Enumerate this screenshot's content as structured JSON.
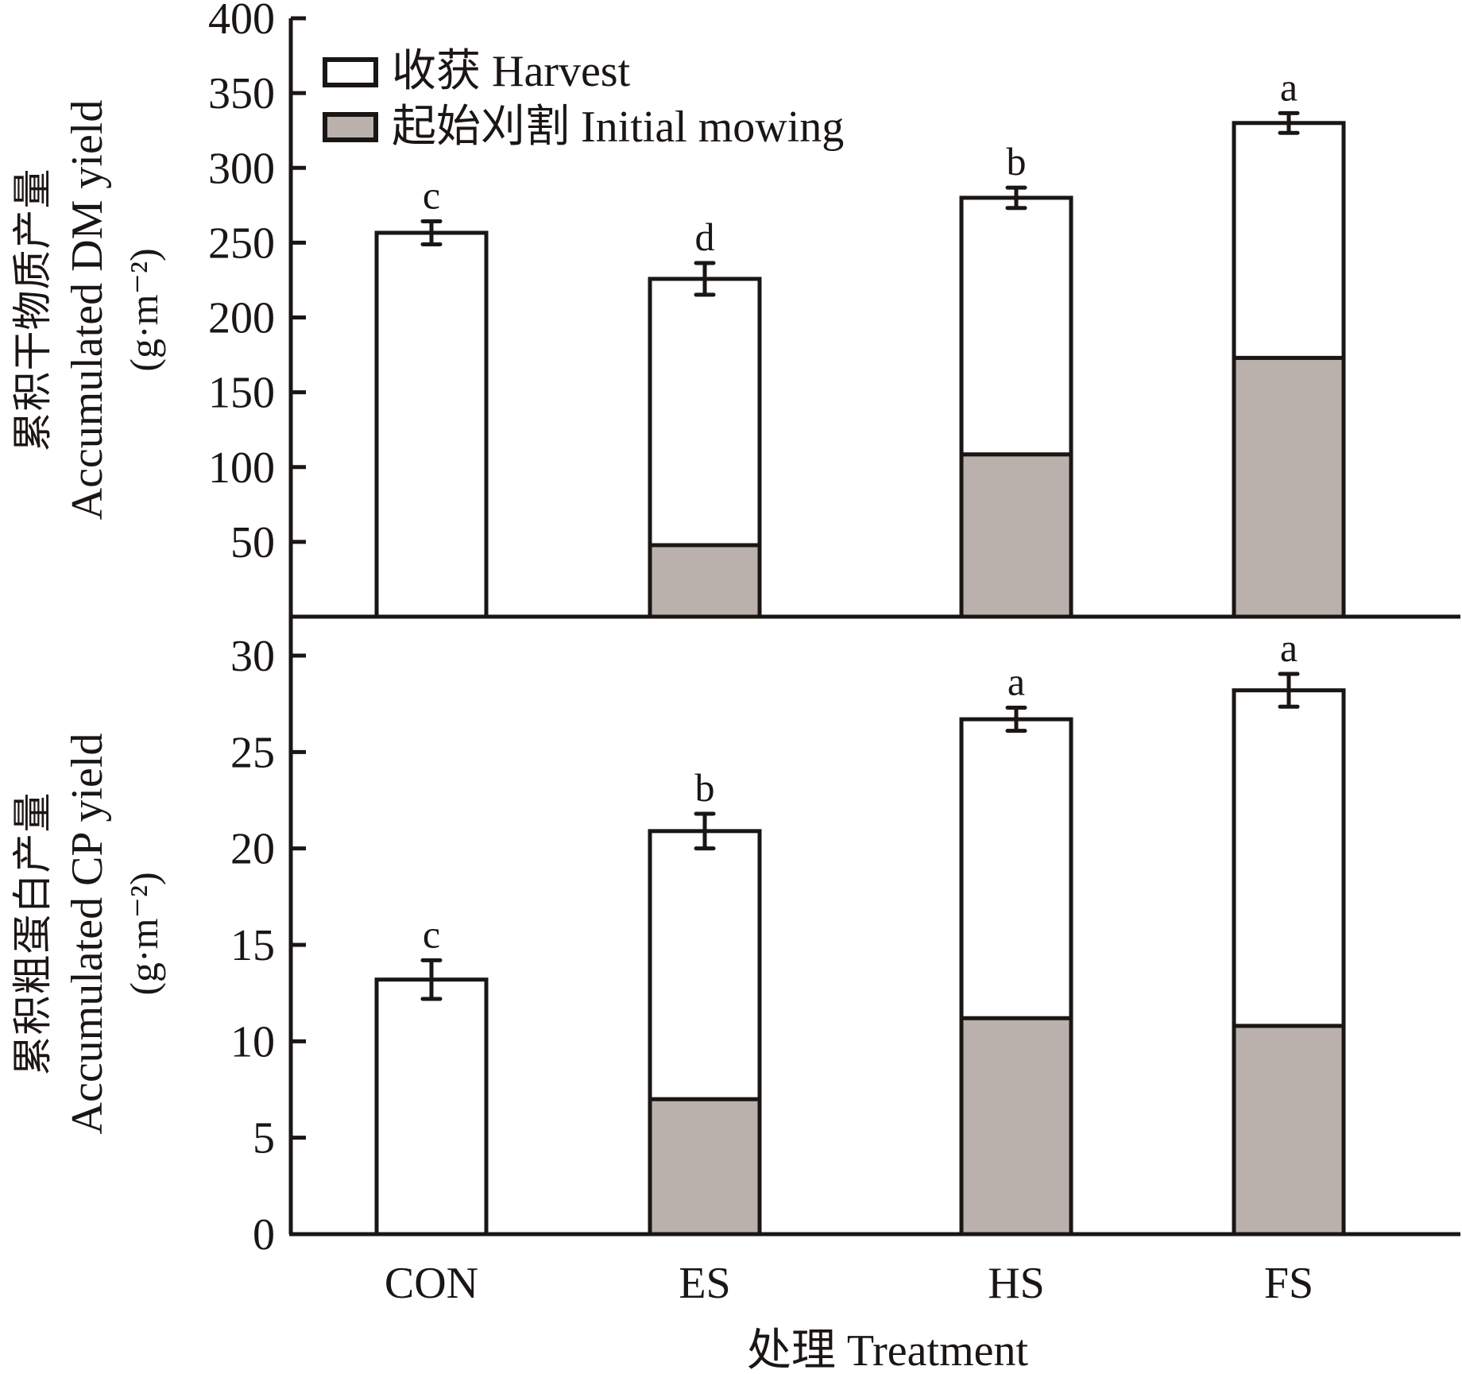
{
  "chart_data": [
    {
      "type": "bar",
      "stacked": true,
      "panel": "top",
      "ylabel_lines": [
        "累积干物质产量",
        "Accumulated DM yield",
        "(g·m⁻²)"
      ],
      "ylim": [
        0,
        400
      ],
      "yticks": [
        50,
        100,
        150,
        200,
        250,
        300,
        350,
        400
      ],
      "categories": [
        "CON",
        "ES",
        "HS",
        "FS"
      ],
      "series": [
        {
          "name": "起始刈割 Initial mowing",
          "key": "initial",
          "values": [
            0,
            47.8,
            108.5,
            173
          ]
        },
        {
          "name": "收获 Harvest",
          "key": "harvest",
          "values": [
            256.6,
            178,
            171.5,
            157
          ]
        }
      ],
      "totals": [
        256.6,
        225.8,
        280,
        330
      ],
      "error": [
        7.7,
        10.6,
        6.8,
        6.6
      ],
      "significance": [
        "c",
        "d",
        "b",
        "a"
      ]
    },
    {
      "type": "bar",
      "stacked": true,
      "panel": "bottom",
      "ylabel_lines": [
        "累积粗蛋白产量",
        "Accumulated CP yield",
        "(g·m⁻²)"
      ],
      "ylim": [
        0,
        32
      ],
      "yticks": [
        0,
        5,
        10,
        15,
        20,
        25,
        30
      ],
      "categories": [
        "CON",
        "ES",
        "HS",
        "FS"
      ],
      "series": [
        {
          "name": "起始刈割 Initial mowing",
          "key": "initial",
          "values": [
            0,
            7.0,
            11.2,
            10.8
          ]
        },
        {
          "name": "收获 Harvest",
          "key": "harvest",
          "values": [
            13.2,
            13.9,
            15.5,
            17.4
          ]
        }
      ],
      "totals": [
        13.2,
        20.9,
        26.7,
        28.2
      ],
      "error": [
        1.0,
        0.9,
        0.6,
        0.85
      ],
      "significance": [
        "c",
        "b",
        "a",
        "a"
      ]
    }
  ],
  "legend": {
    "placement": "top-left",
    "items": [
      {
        "label": "收获 Harvest",
        "color": "#ffffff"
      },
      {
        "label": "起始刈割 Initial mowing",
        "color": "#bab1ad"
      }
    ]
  },
  "xlabel": "处理 Treatment",
  "colors": {
    "stroke": "#1a1614",
    "initial_fill": "#bab1ad",
    "harvest_fill": "#ffffff"
  }
}
